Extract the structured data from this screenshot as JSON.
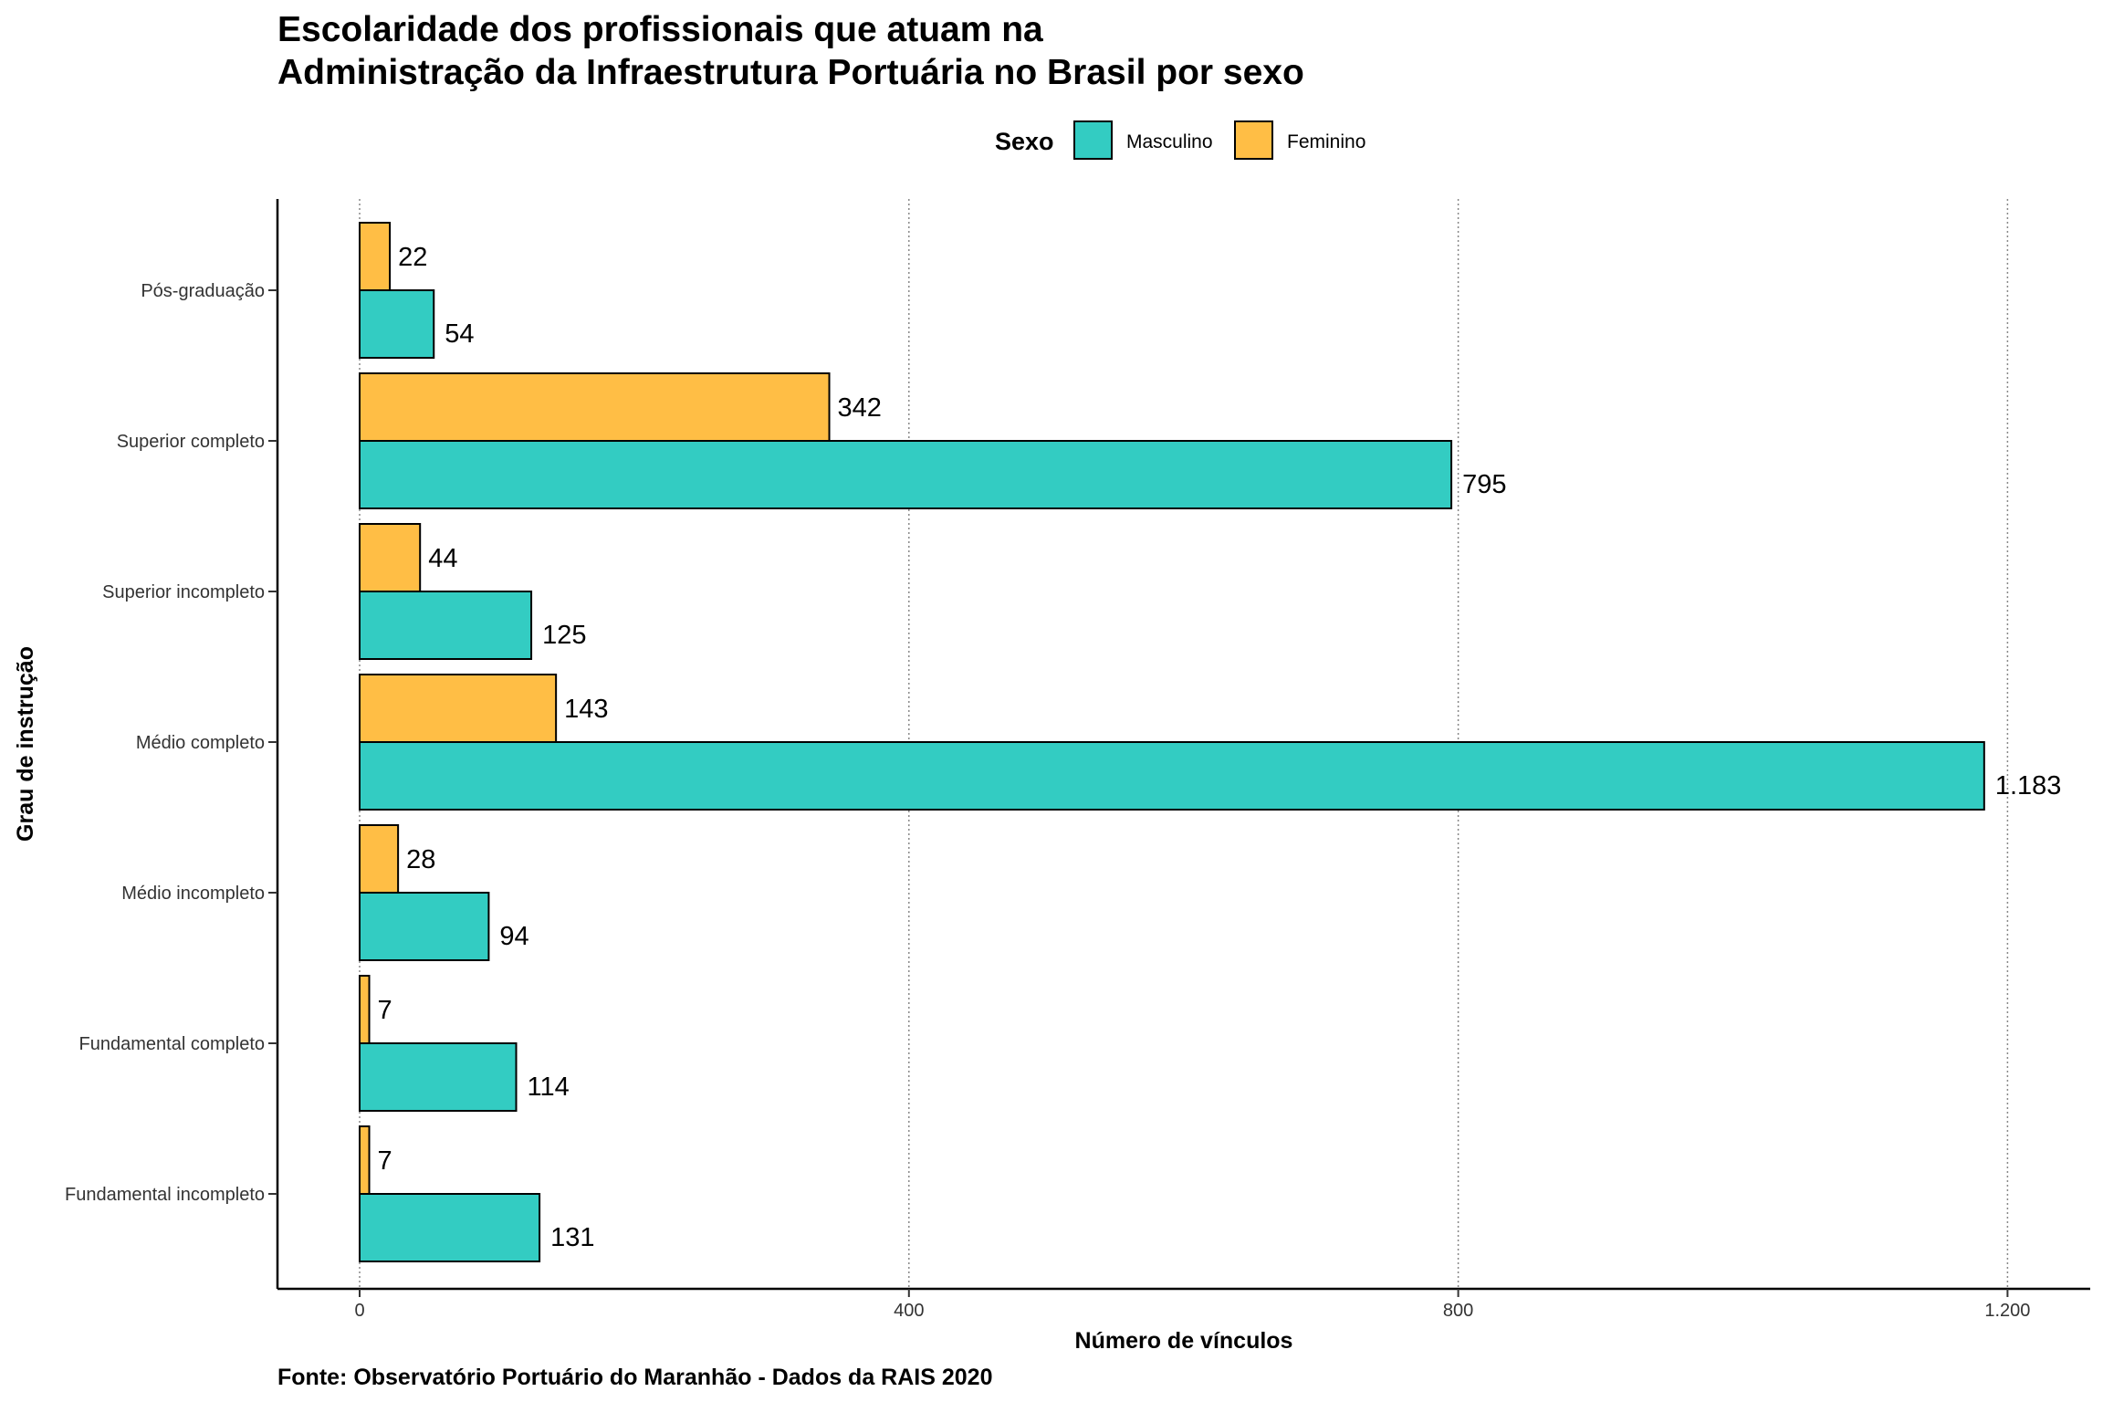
{
  "chart_data": {
    "type": "bar",
    "orientation": "horizontal",
    "title_lines": [
      "Escolaridade dos profissionais que atuam na",
      "Administração da Infraestrutura Portuária no Brasil por sexo"
    ],
    "xlabel": "Número de vínculos",
    "ylabel": "Grau de instrução",
    "caption": "Fonte: Observatório Portuário do Maranhão - Dados da RAIS 2020",
    "legend": {
      "title": "Sexo",
      "position": "top"
    },
    "categories": [
      "Pós-graduação",
      "Superior completo",
      "Superior incompleto",
      "Médio completo",
      "Médio incompleto",
      "Fundamental completo",
      "Fundamental incompleto"
    ],
    "series": [
      {
        "name": "Masculino",
        "color": "#33CCC2",
        "values": [
          54,
          795,
          125,
          1183,
          94,
          114,
          131
        ]
      },
      {
        "name": "Feminino",
        "color": "#FFBE45",
        "values": [
          22,
          342,
          44,
          143,
          28,
          7,
          7
        ]
      }
    ],
    "xlim": [
      0,
      1260
    ],
    "xticks": [
      0,
      400,
      800,
      1200
    ],
    "xtick_labels": [
      "0",
      "400",
      "800",
      "1.200"
    ],
    "grid": "vertical-dotted",
    "number_format": "pt-BR"
  }
}
